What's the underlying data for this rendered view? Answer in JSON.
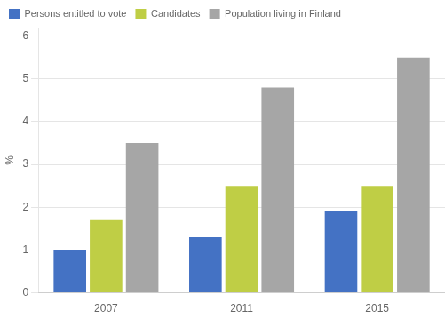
{
  "chart_data": {
    "type": "bar",
    "categories": [
      "2007",
      "2011",
      "2015"
    ],
    "series": [
      {
        "name": "Persons entitled to vote",
        "color": "#4472C4",
        "values": [
          1.0,
          1.3,
          1.9
        ]
      },
      {
        "name": "Candidates",
        "color": "#BFCE45",
        "values": [
          1.7,
          2.5,
          2.5
        ]
      },
      {
        "name": "Population living in Finland",
        "color": "#A6A6A6",
        "values": [
          3.5,
          4.8,
          5.5
        ]
      }
    ],
    "ylabel": "%",
    "ylim": [
      0,
      6.2
    ],
    "yticks": [
      0,
      1,
      2,
      3,
      4,
      5,
      6
    ],
    "grid": true,
    "legend": "upper left"
  }
}
